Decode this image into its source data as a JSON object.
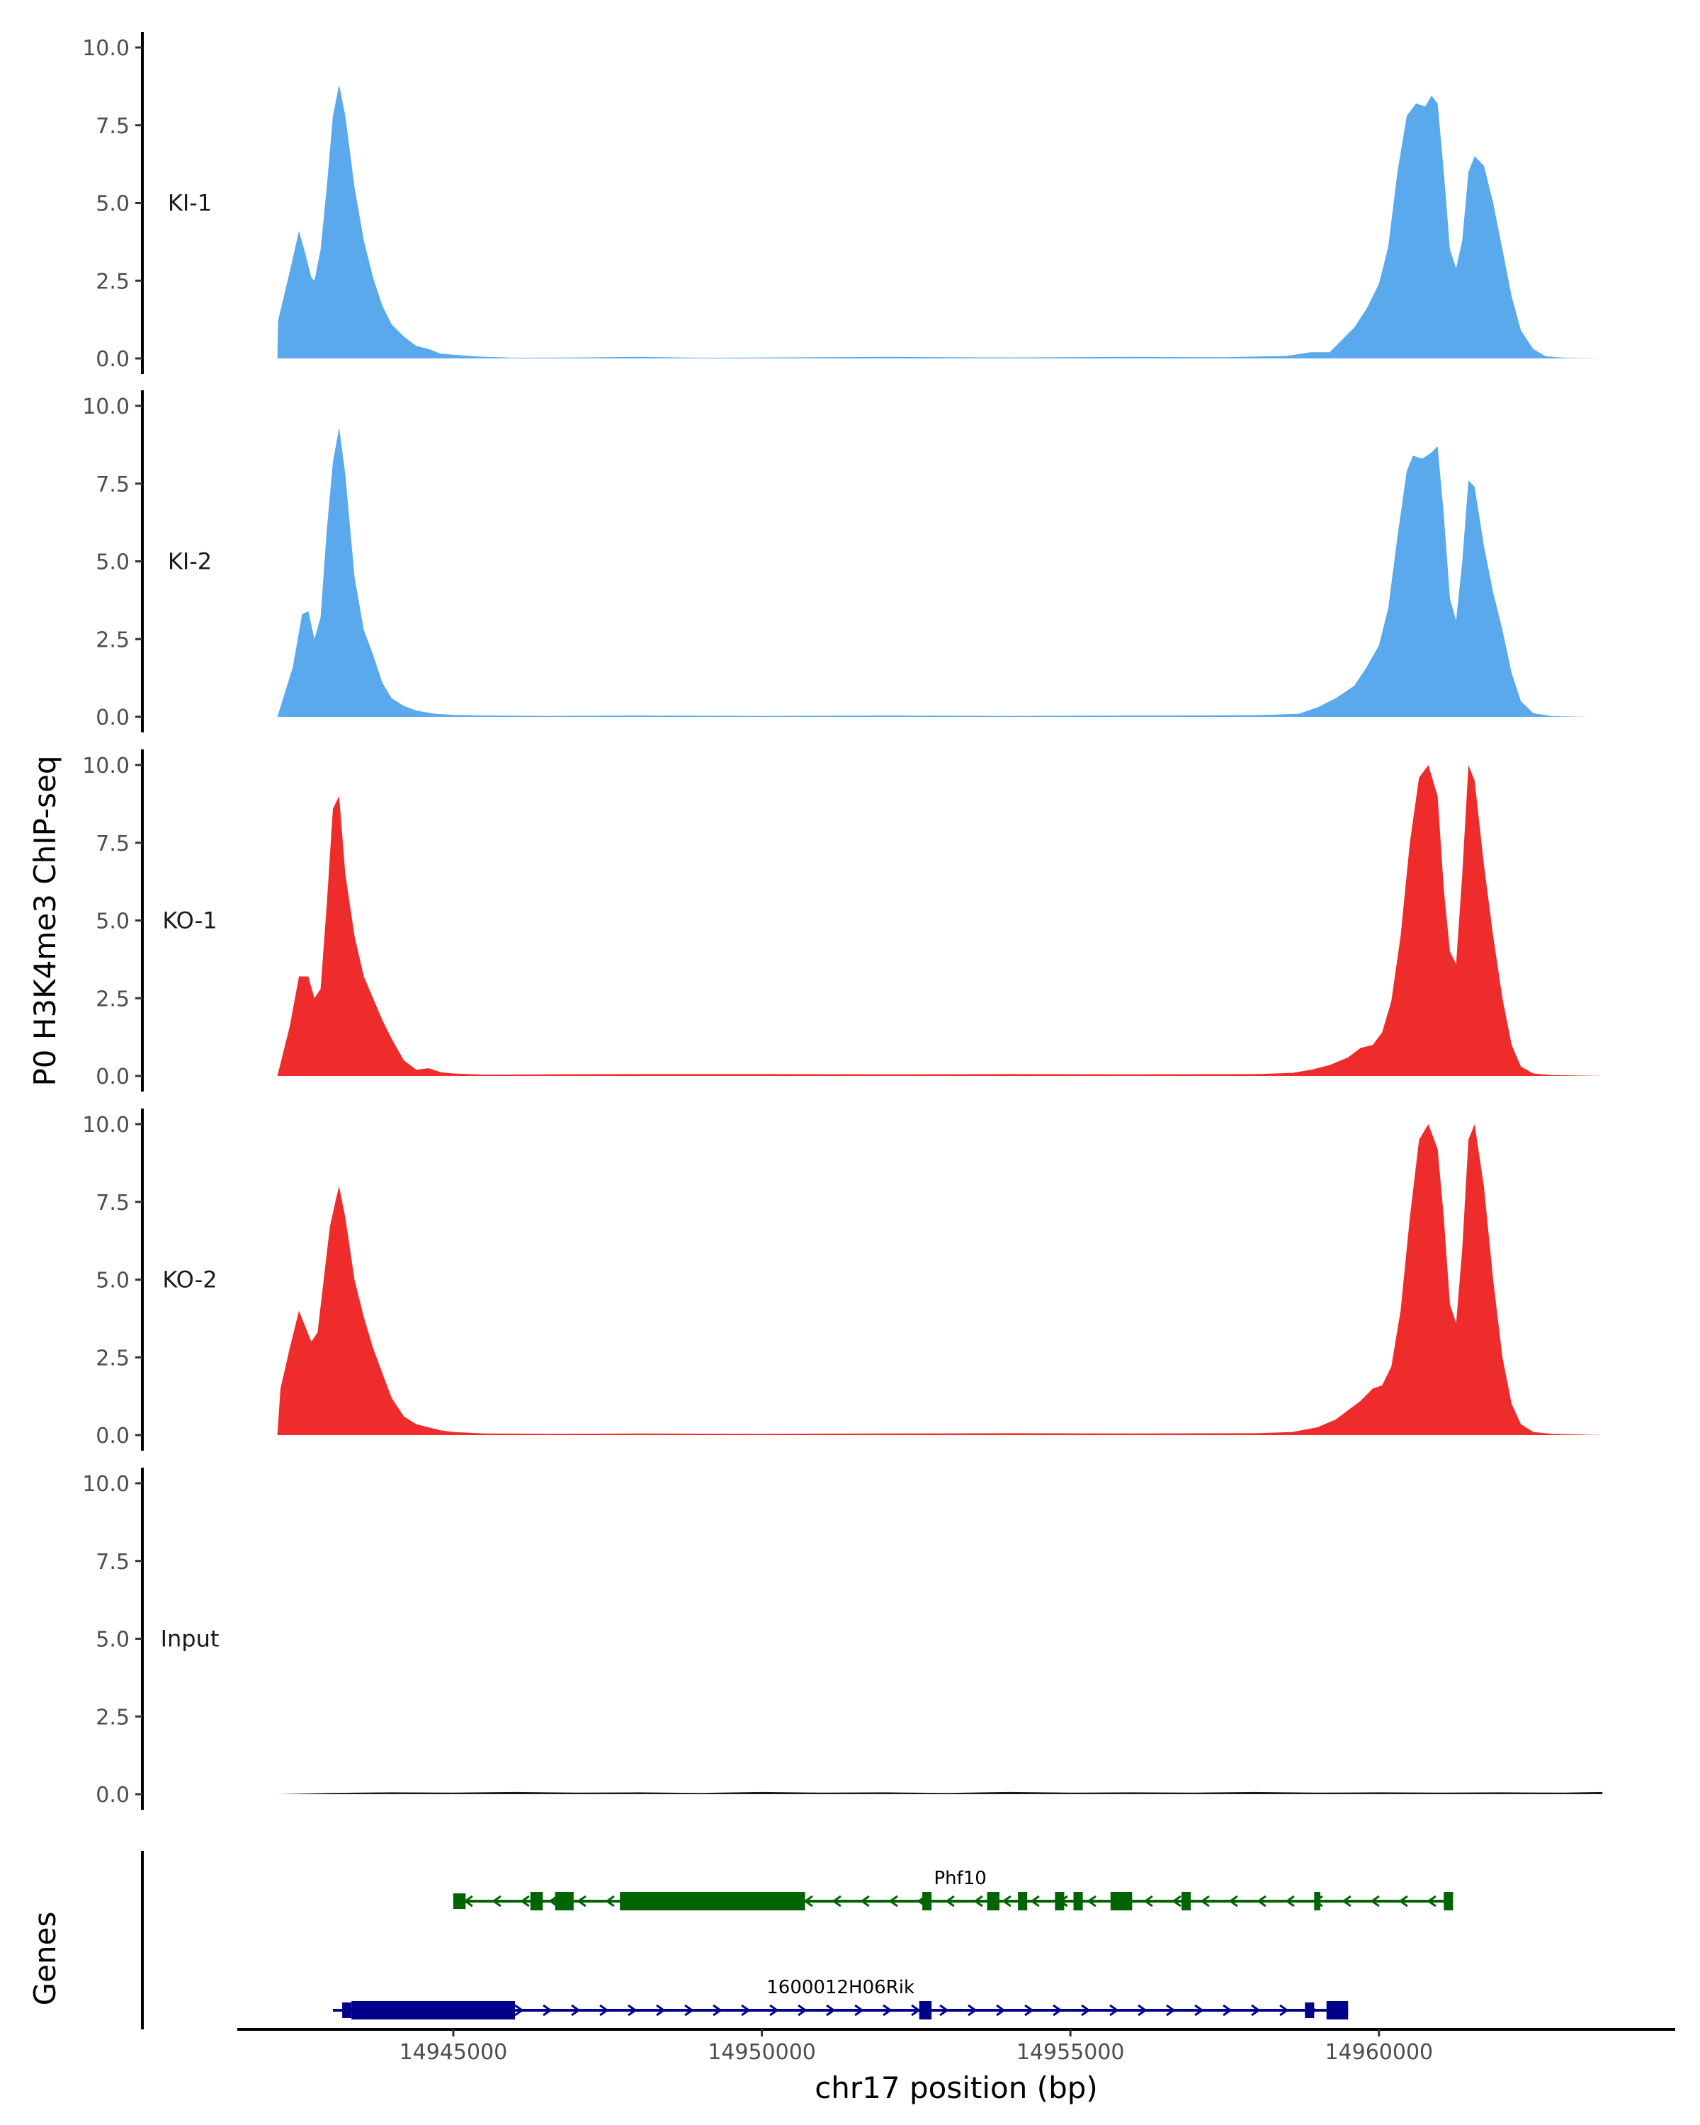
{
  "chart_data": {
    "type": "area",
    "y_axis_title": "P0 H3K4me3 ChIP-seq",
    "genes_axis_title": "Genes",
    "x_axis_title": "chr17 position (bp)",
    "xlim": [
      14941500,
      14964800
    ],
    "x_ticks": [
      14945000,
      14950000,
      14955000,
      14960000
    ],
    "x_tick_labels": [
      "14945000",
      "14950000",
      "14955000",
      "14960000"
    ],
    "ylim": [
      0,
      10
    ],
    "y_ticks": [
      0,
      2.5,
      5,
      7.5,
      10
    ],
    "y_tick_labels": [
      "0.0",
      "2.5",
      "5.0",
      "7.5",
      "10.0"
    ],
    "signal_start": 14942150,
    "signal_end": 14963620,
    "tracks": [
      {
        "name": "KI-1",
        "color": "#5AA9EC",
        "points": [
          [
            14942150,
            0.0
          ],
          [
            14942160,
            1.2
          ],
          [
            14942350,
            2.8
          ],
          [
            14942500,
            4.1
          ],
          [
            14942600,
            3.4
          ],
          [
            14942700,
            2.6
          ],
          [
            14942750,
            2.5
          ],
          [
            14942850,
            3.5
          ],
          [
            14942950,
            5.5
          ],
          [
            14943050,
            7.8
          ],
          [
            14943150,
            8.8
          ],
          [
            14943250,
            7.8
          ],
          [
            14943400,
            5.5
          ],
          [
            14943550,
            3.8
          ],
          [
            14943700,
            2.6
          ],
          [
            14943850,
            1.7
          ],
          [
            14944000,
            1.1
          ],
          [
            14944200,
            0.7
          ],
          [
            14944400,
            0.4
          ],
          [
            14944600,
            0.3
          ],
          [
            14944800,
            0.15
          ],
          [
            14945000,
            0.12
          ],
          [
            14945400,
            0.06
          ],
          [
            14946000,
            0.02
          ],
          [
            14947000,
            0.03
          ],
          [
            14948000,
            0.05
          ],
          [
            14949000,
            0.02
          ],
          [
            14950000,
            0.03
          ],
          [
            14952000,
            0.05
          ],
          [
            14954000,
            0.03
          ],
          [
            14956000,
            0.05
          ],
          [
            14957500,
            0.04
          ],
          [
            14958500,
            0.08
          ],
          [
            14958900,
            0.2
          ],
          [
            14959200,
            0.2
          ],
          [
            14959400,
            0.6
          ],
          [
            14959600,
            1.0
          ],
          [
            14959800,
            1.6
          ],
          [
            14960000,
            2.4
          ],
          [
            14960150,
            3.6
          ],
          [
            14960300,
            6.0
          ],
          [
            14960450,
            7.8
          ],
          [
            14960600,
            8.2
          ],
          [
            14960750,
            8.1
          ],
          [
            14960850,
            8.45
          ],
          [
            14960950,
            8.2
          ],
          [
            14961050,
            6.0
          ],
          [
            14961150,
            3.5
          ],
          [
            14961250,
            2.9
          ],
          [
            14961350,
            3.8
          ],
          [
            14961450,
            6.0
          ],
          [
            14961550,
            6.5
          ],
          [
            14961700,
            6.2
          ],
          [
            14961850,
            5.0
          ],
          [
            14962000,
            3.5
          ],
          [
            14962150,
            2.0
          ],
          [
            14962300,
            0.9
          ],
          [
            14962500,
            0.3
          ],
          [
            14962700,
            0.07
          ],
          [
            14963000,
            0.02
          ],
          [
            14963620,
            0.0
          ]
        ]
      },
      {
        "name": "KI-2",
        "color": "#5AA9EC",
        "points": [
          [
            14942150,
            0.0
          ],
          [
            14942400,
            1.6
          ],
          [
            14942550,
            3.3
          ],
          [
            14942650,
            3.4
          ],
          [
            14942750,
            2.5
          ],
          [
            14942850,
            3.2
          ],
          [
            14942950,
            6.0
          ],
          [
            14943050,
            8.2
          ],
          [
            14943150,
            9.3
          ],
          [
            14943250,
            7.8
          ],
          [
            14943400,
            4.5
          ],
          [
            14943550,
            2.8
          ],
          [
            14943700,
            2.0
          ],
          [
            14943850,
            1.1
          ],
          [
            14944000,
            0.6
          ],
          [
            14944200,
            0.35
          ],
          [
            14944400,
            0.2
          ],
          [
            14944700,
            0.1
          ],
          [
            14945000,
            0.06
          ],
          [
            14945600,
            0.04
          ],
          [
            14946500,
            0.03
          ],
          [
            14948000,
            0.04
          ],
          [
            14950000,
            0.03
          ],
          [
            14952000,
            0.04
          ],
          [
            14954000,
            0.03
          ],
          [
            14956000,
            0.04
          ],
          [
            14958000,
            0.05
          ],
          [
            14958700,
            0.1
          ],
          [
            14959000,
            0.3
          ],
          [
            14959300,
            0.6
          ],
          [
            14959600,
            1.0
          ],
          [
            14959800,
            1.6
          ],
          [
            14960000,
            2.3
          ],
          [
            14960150,
            3.5
          ],
          [
            14960300,
            5.8
          ],
          [
            14960450,
            7.9
          ],
          [
            14960550,
            8.4
          ],
          [
            14960700,
            8.3
          ],
          [
            14960850,
            8.5
          ],
          [
            14960950,
            8.7
          ],
          [
            14961050,
            6.5
          ],
          [
            14961150,
            3.8
          ],
          [
            14961250,
            3.1
          ],
          [
            14961350,
            5.0
          ],
          [
            14961450,
            7.6
          ],
          [
            14961550,
            7.4
          ],
          [
            14961700,
            5.5
          ],
          [
            14961850,
            4.0
          ],
          [
            14962000,
            2.8
          ],
          [
            14962150,
            1.4
          ],
          [
            14962300,
            0.5
          ],
          [
            14962500,
            0.12
          ],
          [
            14962800,
            0.02
          ],
          [
            14963400,
            0.0
          ]
        ]
      },
      {
        "name": "KO-1",
        "color": "#EE2C2C",
        "points": [
          [
            14942150,
            0.0
          ],
          [
            14942350,
            1.6
          ],
          [
            14942500,
            3.2
          ],
          [
            14942650,
            3.2
          ],
          [
            14942750,
            2.5
          ],
          [
            14942850,
            2.8
          ],
          [
            14942950,
            5.5
          ],
          [
            14943050,
            8.6
          ],
          [
            14943150,
            9.0
          ],
          [
            14943250,
            6.5
          ],
          [
            14943400,
            4.5
          ],
          [
            14943550,
            3.2
          ],
          [
            14943700,
            2.5
          ],
          [
            14943850,
            1.8
          ],
          [
            14944000,
            1.2
          ],
          [
            14944200,
            0.5
          ],
          [
            14944400,
            0.2
          ],
          [
            14944600,
            0.25
          ],
          [
            14944800,
            0.12
          ],
          [
            14945000,
            0.08
          ],
          [
            14945500,
            0.04
          ],
          [
            14946500,
            0.05
          ],
          [
            14948000,
            0.06
          ],
          [
            14950000,
            0.06
          ],
          [
            14952000,
            0.05
          ],
          [
            14954000,
            0.06
          ],
          [
            14956000,
            0.05
          ],
          [
            14958000,
            0.06
          ],
          [
            14958600,
            0.1
          ],
          [
            14958900,
            0.2
          ],
          [
            14959200,
            0.35
          ],
          [
            14959500,
            0.6
          ],
          [
            14959700,
            0.9
          ],
          [
            14959900,
            1.0
          ],
          [
            14960050,
            1.4
          ],
          [
            14960200,
            2.4
          ],
          [
            14960350,
            4.5
          ],
          [
            14960500,
            7.5
          ],
          [
            14960650,
            9.6
          ],
          [
            14960800,
            10.0
          ],
          [
            14960950,
            9.0
          ],
          [
            14961050,
            6.0
          ],
          [
            14961150,
            4.0
          ],
          [
            14961250,
            3.6
          ],
          [
            14961350,
            6.5
          ],
          [
            14961450,
            10.0
          ],
          [
            14961550,
            9.5
          ],
          [
            14961700,
            6.8
          ],
          [
            14961850,
            4.5
          ],
          [
            14962000,
            2.5
          ],
          [
            14962150,
            1.0
          ],
          [
            14962300,
            0.3
          ],
          [
            14962500,
            0.08
          ],
          [
            14962800,
            0.03
          ],
          [
            14963620,
            0.0
          ]
        ]
      },
      {
        "name": "KO-2",
        "color": "#EE2C2C",
        "points": [
          [
            14942150,
            0.0
          ],
          [
            14942200,
            1.5
          ],
          [
            14942350,
            2.8
          ],
          [
            14942500,
            4.0
          ],
          [
            14942600,
            3.5
          ],
          [
            14942700,
            3.0
          ],
          [
            14942800,
            3.3
          ],
          [
            14942900,
            5.0
          ],
          [
            14943000,
            6.7
          ],
          [
            14943100,
            7.6
          ],
          [
            14943150,
            8.0
          ],
          [
            14943250,
            7.0
          ],
          [
            14943400,
            5.0
          ],
          [
            14943550,
            3.8
          ],
          [
            14943700,
            2.8
          ],
          [
            14943850,
            2.0
          ],
          [
            14944000,
            1.2
          ],
          [
            14944200,
            0.6
          ],
          [
            14944400,
            0.35
          ],
          [
            14944600,
            0.25
          ],
          [
            14944800,
            0.15
          ],
          [
            14945000,
            0.1
          ],
          [
            14945500,
            0.05
          ],
          [
            14946500,
            0.04
          ],
          [
            14948000,
            0.05
          ],
          [
            14950000,
            0.04
          ],
          [
            14952000,
            0.05
          ],
          [
            14954000,
            0.06
          ],
          [
            14956000,
            0.05
          ],
          [
            14958000,
            0.06
          ],
          [
            14958600,
            0.1
          ],
          [
            14959000,
            0.25
          ],
          [
            14959300,
            0.5
          ],
          [
            14959500,
            0.8
          ],
          [
            14959700,
            1.1
          ],
          [
            14959900,
            1.5
          ],
          [
            14960050,
            1.6
          ],
          [
            14960200,
            2.2
          ],
          [
            14960350,
            4.0
          ],
          [
            14960500,
            7.0
          ],
          [
            14960650,
            9.5
          ],
          [
            14960800,
            10.0
          ],
          [
            14960950,
            9.2
          ],
          [
            14961050,
            7.0
          ],
          [
            14961150,
            4.2
          ],
          [
            14961250,
            3.6
          ],
          [
            14961350,
            6.0
          ],
          [
            14961450,
            9.5
          ],
          [
            14961550,
            10.0
          ],
          [
            14961700,
            8.0
          ],
          [
            14961850,
            5.0
          ],
          [
            14962000,
            2.5
          ],
          [
            14962150,
            1.0
          ],
          [
            14962300,
            0.35
          ],
          [
            14962500,
            0.1
          ],
          [
            14962800,
            0.04
          ],
          [
            14963620,
            0.0
          ]
        ]
      },
      {
        "name": "Input",
        "color": "#1a1a1a",
        "points": [
          [
            14942150,
            0.0
          ],
          [
            14943000,
            0.04
          ],
          [
            14944000,
            0.06
          ],
          [
            14945000,
            0.05
          ],
          [
            14946000,
            0.07
          ],
          [
            14947000,
            0.05
          ],
          [
            14948000,
            0.06
          ],
          [
            14949000,
            0.04
          ],
          [
            14950000,
            0.07
          ],
          [
            14951000,
            0.05
          ],
          [
            14952000,
            0.06
          ],
          [
            14953000,
            0.04
          ],
          [
            14954000,
            0.07
          ],
          [
            14955000,
            0.05
          ],
          [
            14956000,
            0.06
          ],
          [
            14957000,
            0.05
          ],
          [
            14958000,
            0.07
          ],
          [
            14959000,
            0.05
          ],
          [
            14960000,
            0.06
          ],
          [
            14961000,
            0.05
          ],
          [
            14962000,
            0.06
          ],
          [
            14963000,
            0.05
          ],
          [
            14963620,
            0.07
          ]
        ]
      }
    ],
    "genes": [
      {
        "name": "Phf10",
        "strand": "-",
        "color": "#006400",
        "start": 14945000,
        "end": 14961200,
        "utr_blocks": [
          [
            14945000,
            14945200
          ]
        ],
        "exon_blocks": [
          [
            14946250,
            14946450
          ],
          [
            14946650,
            14946950
          ],
          [
            14947700,
            14950700
          ],
          [
            14952600,
            14952750
          ],
          [
            14953650,
            14953850
          ],
          [
            14954150,
            14954300
          ],
          [
            14954750,
            14954900
          ],
          [
            14955050,
            14955200
          ],
          [
            14955650,
            14956000
          ],
          [
            14956800,
            14956950
          ],
          [
            14958950,
            14959050
          ],
          [
            14961050,
            14961200
          ]
        ]
      },
      {
        "name": "1600012H06Rik",
        "strand": "+",
        "color": "#00008B",
        "start": 14943050,
        "end": 14959500,
        "utr_blocks": [
          [
            14943200,
            14943350
          ],
          [
            14958800,
            14958950
          ]
        ],
        "exon_blocks": [
          [
            14943350,
            14946000
          ],
          [
            14952550,
            14952750
          ],
          [
            14959150,
            14959500
          ]
        ]
      }
    ]
  }
}
